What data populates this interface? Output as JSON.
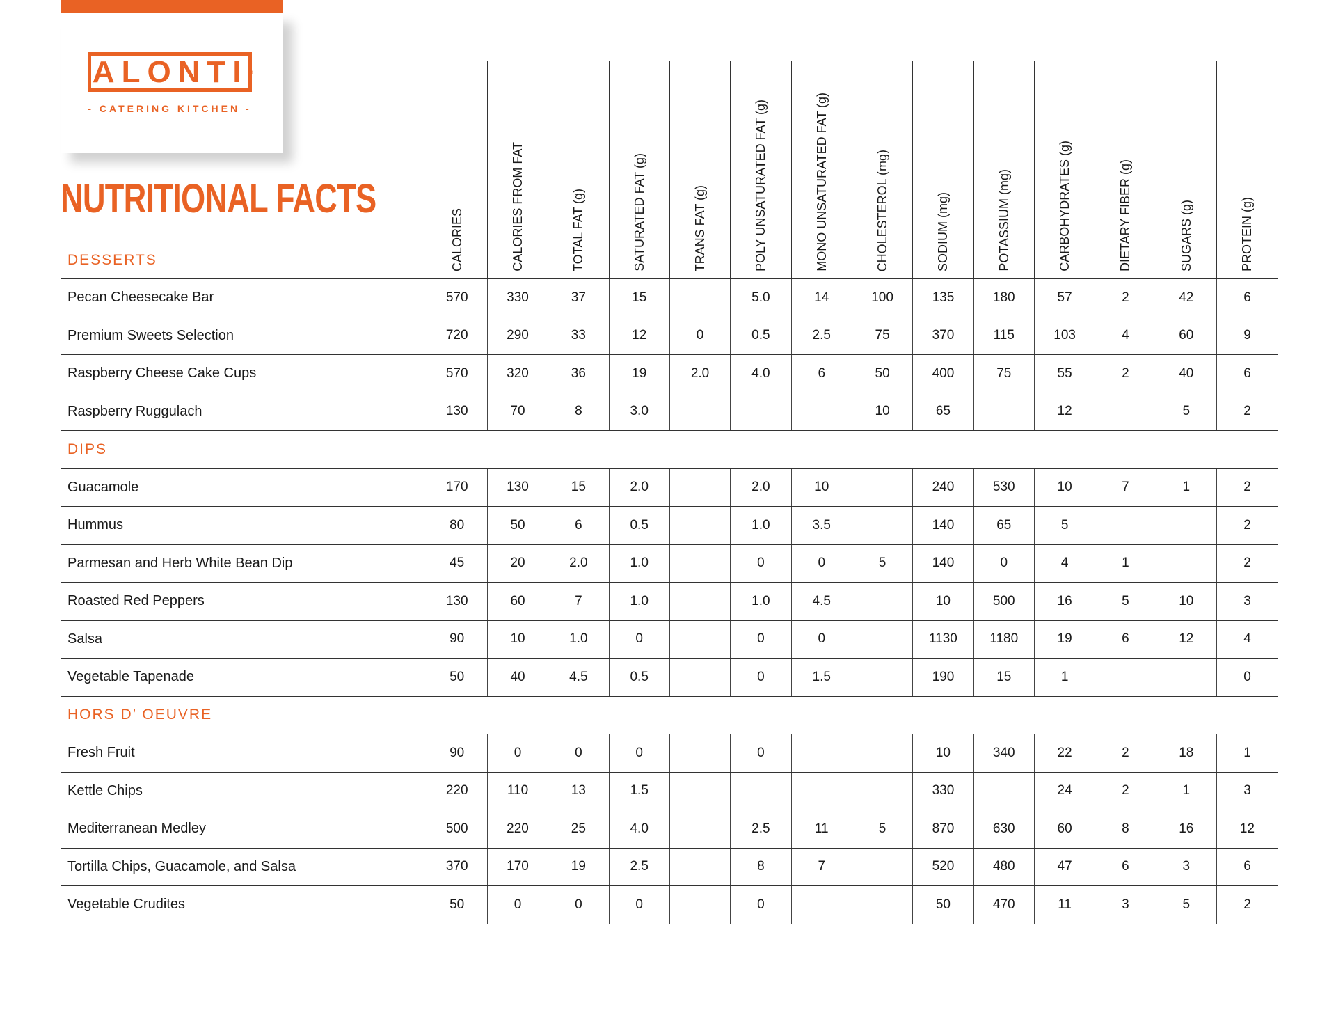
{
  "logo": {
    "brand": "ALONTI",
    "registered": "®",
    "tagline": "- CATERING KITCHEN -"
  },
  "title": "NUTRITIONAL FACTS",
  "columns": [
    "CALORIES",
    "CALORIES FROM FAT",
    "TOTAL FAT (g)",
    "SATURATED FAT (g)",
    "TRANS FAT (g)",
    "POLY UNSATURATED FAT (g)",
    "MONO UNSATURATED FAT (g)",
    "CHOLESTEROL (mg)",
    "SODIUM (mg)",
    "POTASSIUM (mg)",
    "CARBOHYDRATES (g)",
    "DIETARY FIBER (g)",
    "SUGARS (g)",
    "PROTEIN (g)"
  ],
  "sections": [
    {
      "name": "DESSERTS",
      "rows": [
        {
          "item": "Pecan Cheesecake Bar",
          "values": [
            "570",
            "330",
            "37",
            "15",
            "",
            "5.0",
            "14",
            "100",
            "135",
            "180",
            "57",
            "2",
            "42",
            "6"
          ]
        },
        {
          "item": "Premium Sweets Selection",
          "values": [
            "720",
            "290",
            "33",
            "12",
            "0",
            "0.5",
            "2.5",
            "75",
            "370",
            "115",
            "103",
            "4",
            "60",
            "9"
          ]
        },
        {
          "item": "Raspberry Cheese Cake Cups",
          "values": [
            "570",
            "320",
            "36",
            "19",
            "2.0",
            "4.0",
            "6",
            "50",
            "400",
            "75",
            "55",
            "2",
            "40",
            "6"
          ]
        },
        {
          "item": "Raspberry Ruggulach",
          "values": [
            "130",
            "70",
            "8",
            "3.0",
            "",
            "",
            "",
            "10",
            "65",
            "",
            "12",
            "",
            "5",
            "2"
          ]
        }
      ]
    },
    {
      "name": "DIPS",
      "rows": [
        {
          "item": "Guacamole",
          "values": [
            "170",
            "130",
            "15",
            "2.0",
            "",
            "2.0",
            "10",
            "",
            "240",
            "530",
            "10",
            "7",
            "1",
            "2"
          ]
        },
        {
          "item": "Hummus",
          "values": [
            "80",
            "50",
            "6",
            "0.5",
            "",
            "1.0",
            "3.5",
            "",
            "140",
            "65",
            "5",
            "",
            "",
            "2"
          ]
        },
        {
          "item": "Parmesan and Herb White Bean Dip",
          "values": [
            "45",
            "20",
            "2.0",
            "1.0",
            "",
            "0",
            "0",
            "5",
            "140",
            "0",
            "4",
            "1",
            "",
            "2"
          ]
        },
        {
          "item": "Roasted Red Peppers",
          "values": [
            "130",
            "60",
            "7",
            "1.0",
            "",
            "1.0",
            "4.5",
            "",
            "10",
            "500",
            "16",
            "5",
            "10",
            "3"
          ]
        },
        {
          "item": "Salsa",
          "values": [
            "90",
            "10",
            "1.0",
            "0",
            "",
            "0",
            "0",
            "",
            "1130",
            "1180",
            "19",
            "6",
            "12",
            "4"
          ]
        },
        {
          "item": "Vegetable Tapenade",
          "values": [
            "50",
            "40",
            "4.5",
            "0.5",
            "",
            "0",
            "1.5",
            "",
            "190",
            "15",
            "1",
            "",
            "",
            "0"
          ]
        }
      ]
    },
    {
      "name": "HORS D’ OEUVRE",
      "rows": [
        {
          "item": "Fresh Fruit",
          "values": [
            "90",
            "0",
            "0",
            "0",
            "",
            "0",
            "",
            "",
            "10",
            "340",
            "22",
            "2",
            "18",
            "1"
          ]
        },
        {
          "item": "Kettle Chips",
          "values": [
            "220",
            "110",
            "13",
            "1.5",
            "",
            "",
            "",
            "",
            "330",
            "",
            "24",
            "2",
            "1",
            "3"
          ]
        },
        {
          "item": "Mediterranean Medley",
          "values": [
            "500",
            "220",
            "25",
            "4.0",
            "",
            "2.5",
            "11",
            "5",
            "870",
            "630",
            "60",
            "8",
            "16",
            "12"
          ]
        },
        {
          "item": "Tortilla Chips, Guacamole, and Salsa",
          "values": [
            "370",
            "170",
            "19",
            "2.5",
            "",
            "8",
            "7",
            "",
            "520",
            "480",
            "47",
            "6",
            "3",
            "6"
          ]
        },
        {
          "item": "Vegetable Crudites",
          "values": [
            "50",
            "0",
            "0",
            "0",
            "",
            "0",
            "",
            "",
            "50",
            "470",
            "11",
            "3",
            "5",
            "2"
          ]
        }
      ]
    }
  ]
}
